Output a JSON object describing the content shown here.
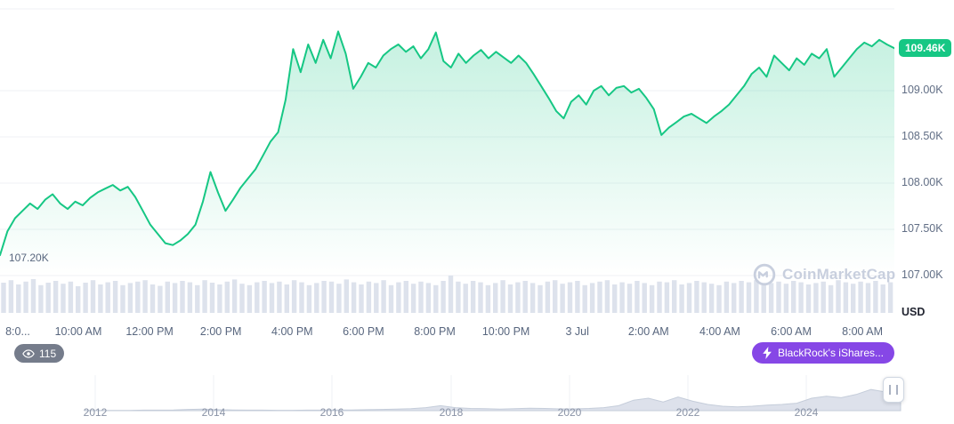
{
  "colors": {
    "line": "#16c784",
    "grid": "#eff2f5",
    "volume": "#dde2ec",
    "badge_purple": "#8647e6",
    "watchers_bg": "rgba(93,101,119,0.85)",
    "nav_fill": "#d7dce7",
    "nav_stroke": "#c5cdda"
  },
  "y_axis": {
    "current_badge": "109.46K",
    "unit": "USD",
    "low_label": "107.20K",
    "ticks": [
      {
        "label": "109.00K",
        "value": 109.0
      },
      {
        "label": "108.50K",
        "value": 108.5
      },
      {
        "label": "108.00K",
        "value": 108.0
      },
      {
        "label": "107.50K",
        "value": 107.5
      },
      {
        "label": "107.00K",
        "value": 107.0
      }
    ]
  },
  "x_axis": {
    "labels": [
      "8:0...",
      "10:00 AM",
      "12:00 PM",
      "2:00 PM",
      "4:00 PM",
      "6:00 PM",
      "8:00 PM",
      "10:00 PM",
      "3 Jul",
      "2:00 AM",
      "4:00 AM",
      "6:00 AM",
      "8:00 AM"
    ]
  },
  "badges": {
    "watchers": "115",
    "news": "BlackRock's iShares..."
  },
  "watermark": {
    "text": "CoinMarketCap"
  },
  "timeline": {
    "years": [
      "2012",
      "2014",
      "2016",
      "2018",
      "2020",
      "2022",
      "2024"
    ]
  },
  "chart_data": {
    "type": "area",
    "title": "Intraday price (USD)",
    "ylabel": "USD",
    "y_unit": "K USD",
    "y_ticks": [
      109.0,
      108.5,
      108.0,
      107.5,
      107.0
    ],
    "y_range": [
      106.95,
      109.9
    ],
    "current_price_k": 109.46,
    "session_low_k": 107.2,
    "x_tick_labels": [
      "8:0...",
      "10:00 AM",
      "12:00 PM",
      "2:00 PM",
      "4:00 PM",
      "6:00 PM",
      "8:00 PM",
      "10:00 PM",
      "3 Jul",
      "2:00 AM",
      "4:00 AM",
      "6:00 AM",
      "8:00 AM"
    ],
    "prices_k": [
      107.22,
      107.48,
      107.62,
      107.7,
      107.78,
      107.72,
      107.82,
      107.88,
      107.78,
      107.72,
      107.8,
      107.76,
      107.84,
      107.9,
      107.94,
      107.98,
      107.92,
      107.96,
      107.85,
      107.7,
      107.55,
      107.45,
      107.35,
      107.33,
      107.38,
      107.45,
      107.55,
      107.8,
      108.12,
      107.9,
      107.7,
      107.82,
      107.95,
      108.05,
      108.15,
      108.3,
      108.45,
      108.55,
      108.9,
      109.45,
      109.2,
      109.5,
      109.3,
      109.55,
      109.35,
      109.64,
      109.4,
      109.02,
      109.15,
      109.3,
      109.25,
      109.38,
      109.45,
      109.5,
      109.42,
      109.48,
      109.35,
      109.45,
      109.63,
      109.32,
      109.25,
      109.4,
      109.3,
      109.38,
      109.44,
      109.35,
      109.42,
      109.36,
      109.3,
      109.38,
      109.3,
      109.18,
      109.05,
      108.92,
      108.78,
      108.7,
      108.88,
      108.95,
      108.85,
      109.0,
      109.05,
      108.95,
      109.03,
      109.05,
      108.98,
      109.02,
      108.92,
      108.8,
      108.52,
      108.6,
      108.66,
      108.72,
      108.75,
      108.7,
      108.65,
      108.72,
      108.78,
      108.85,
      108.95,
      109.05,
      109.18,
      109.25,
      109.15,
      109.38,
      109.3,
      109.22,
      109.35,
      109.28,
      109.4,
      109.35,
      109.45,
      109.15,
      109.25,
      109.35,
      109.45,
      109.52,
      109.48,
      109.55,
      109.5,
      109.46
    ],
    "volume_norm": [
      0.85,
      0.92,
      0.8,
      0.88,
      0.95,
      0.78,
      0.85,
      0.9,
      0.82,
      0.88,
      0.75,
      0.85,
      0.92,
      0.8,
      0.86,
      0.9,
      0.78,
      0.84,
      0.88,
      0.92,
      0.8,
      0.76,
      0.88,
      0.84,
      0.9,
      0.86,
      0.78,
      0.92,
      0.85,
      0.8,
      0.88,
      0.94,
      0.82,
      0.78,
      0.86,
      0.9,
      0.84,
      0.88,
      0.8,
      0.92,
      0.86,
      0.78,
      0.84,
      0.9,
      0.88,
      0.82,
      0.94,
      0.86,
      0.8,
      0.88,
      0.84,
      0.92,
      0.78,
      0.86,
      0.9,
      0.82,
      0.88,
      0.84,
      0.78,
      0.9,
      1.05,
      0.88,
      0.82,
      0.9,
      0.86,
      0.78,
      0.84,
      0.92,
      0.8,
      0.86,
      0.9,
      0.84,
      0.78,
      0.88,
      0.92,
      0.82,
      0.86,
      0.9,
      0.78,
      0.84,
      0.88,
      0.92,
      0.8,
      0.86,
      0.82,
      0.9,
      0.84,
      0.78,
      0.88,
      0.86,
      0.92,
      0.8,
      0.84,
      0.9,
      0.86,
      0.82,
      0.78,
      0.88,
      0.84,
      0.9,
      0.86,
      0.92,
      0.78,
      0.84,
      0.88,
      0.82,
      0.9,
      0.86,
      0.8,
      0.84,
      0.88,
      0.78,
      0.92,
      0.86,
      0.82,
      0.88,
      0.84,
      0.9,
      0.8,
      0.86
    ],
    "navigator": {
      "year_labels": [
        "2012",
        "2014",
        "2016",
        "2018",
        "2020",
        "2022",
        "2024"
      ],
      "values_norm": [
        0.01,
        0.01,
        0.01,
        0.01,
        0.02,
        0.02,
        0.03,
        0.05,
        0.06,
        0.04,
        0.03,
        0.02,
        0.02,
        0.015,
        0.015,
        0.02,
        0.02,
        0.03,
        0.03,
        0.04,
        0.05,
        0.06,
        0.08,
        0.12,
        0.2,
        0.12,
        0.09,
        0.08,
        0.06,
        0.08,
        0.1,
        0.09,
        0.07,
        0.07,
        0.09,
        0.12,
        0.2,
        0.42,
        0.5,
        0.35,
        0.55,
        0.38,
        0.25,
        0.18,
        0.15,
        0.18,
        0.22,
        0.25,
        0.3,
        0.5,
        0.58,
        0.52,
        0.65,
        0.85,
        0.75,
        1.0
      ]
    }
  }
}
